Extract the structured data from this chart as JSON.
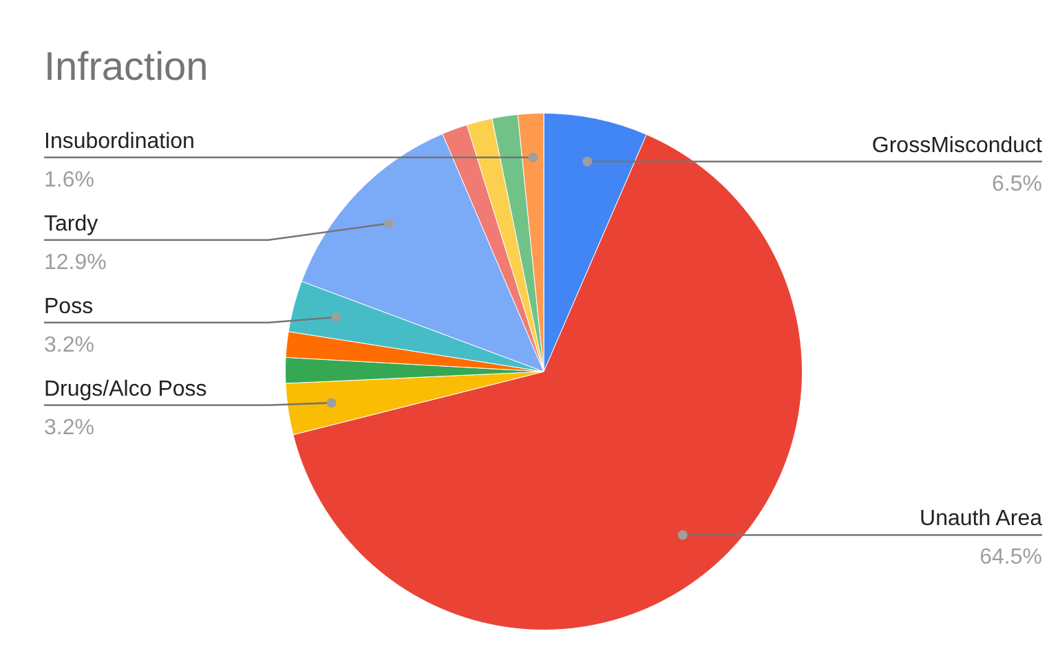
{
  "chart_data": {
    "type": "pie",
    "title": "Infraction",
    "categories": [
      "GrossMisconduct",
      "Unauth Area",
      "Drugs/Alco Poss",
      null,
      null,
      "Poss",
      "Tardy",
      null,
      null,
      null,
      "Insubordination"
    ],
    "values": [
      6.5,
      64.5,
      3.2,
      1.6,
      1.6,
      3.2,
      12.9,
      1.6,
      1.6,
      1.6,
      1.6
    ],
    "colors": [
      "#4285f4",
      "#ea4335",
      "#fbbc04",
      "#34a853",
      "#ff6d01",
      "#46bdc6",
      "#7baaf7",
      "#f07b72",
      "#fcd04f",
      "#71c287",
      "#ff994d"
    ],
    "value_labels": [
      "6.5%",
      "64.5%",
      "3.2%",
      null,
      null,
      "3.2%",
      "12.9%",
      null,
      null,
      null,
      "1.6%"
    ],
    "legend": false
  }
}
